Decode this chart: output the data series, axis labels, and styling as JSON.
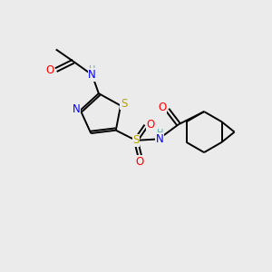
{
  "bg_color": "#ebebeb",
  "bond_color": "#000000",
  "atom_colors": {
    "S": "#b8a000",
    "N": "#0000ff",
    "O": "#ff0000",
    "H": "#5aacac",
    "C": "#000000"
  },
  "figsize": [
    3.0,
    3.0
  ],
  "dpi": 100
}
